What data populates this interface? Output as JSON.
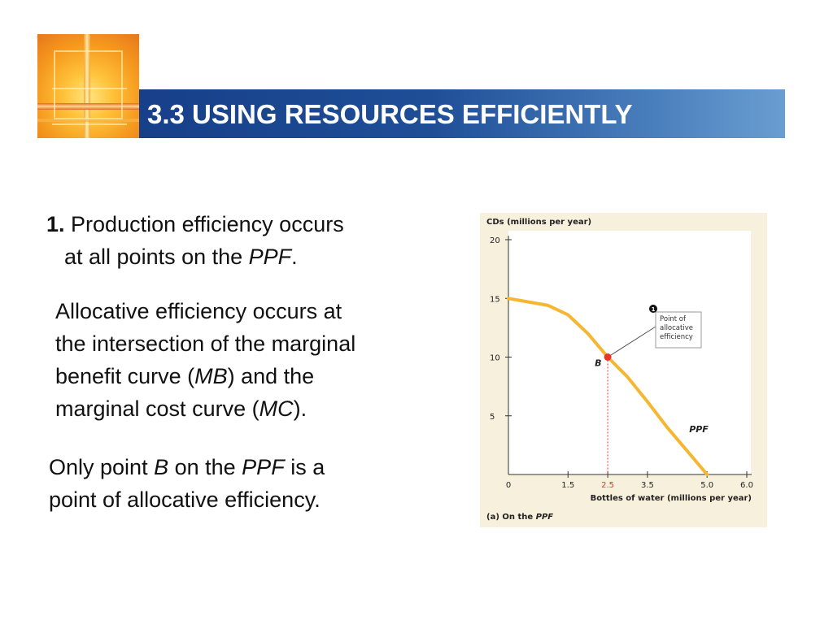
{
  "slide": {
    "title": "3.3 USING RESOURCES EFFICIENTLY",
    "point1": {
      "number": "1.",
      "line1": " Production efficiency occurs",
      "line2_pre": "at all points on the ",
      "line2_italic": "PPF",
      "line2_post": "."
    },
    "para2": {
      "l1": "Allocative efficiency occurs at",
      "l2": "the intersection of the marginal",
      "l3_pre": "benefit curve (",
      "l3_italic": "MB",
      "l3_post": ") and the",
      "l4_pre": "marginal cost curve (",
      "l4_italic": "MC",
      "l4_post": ")."
    },
    "para3": {
      "l1_pre": "Only point ",
      "l1_italic_b": "B",
      "l1_mid": " on the ",
      "l1_italic_ppf": "PPF",
      "l1_post": " is a",
      "l2": "point of allocative efficiency."
    }
  },
  "colors": {
    "banner_start": "#173f8a",
    "banner_end": "#6a9ed1",
    "curve": "#f5b731",
    "point": "#e8342a",
    "panel_bg": "#f7f0dc"
  },
  "chart_data": {
    "type": "line",
    "ylabel": "CDs (millions per year)",
    "xlabel": "Bottles of water (millions per year)",
    "caption_pre": "(a) On the ",
    "caption_italic": "PPF",
    "curve_label": "PPF",
    "y_ticks": [
      "20",
      "15",
      "10",
      "5"
    ],
    "y_tick_values": [
      20,
      15,
      10,
      5
    ],
    "x_ticks": [
      "0",
      "1.5",
      "2.5",
      "3.5",
      "5.0",
      "6.0"
    ],
    "x_tick_values": [
      0,
      1.5,
      2.5,
      3.5,
      5.0,
      6.0
    ],
    "highlight_x_tick": "2.5",
    "xlim": [
      0,
      6.0
    ],
    "ylim": [
      0,
      20
    ],
    "series": [
      {
        "x": [
          0,
          1.0,
          1.5,
          2.0,
          2.5,
          3.0,
          3.5,
          4.0,
          4.5,
          5.0
        ],
        "y": [
          15,
          14.4,
          13.6,
          12.0,
          10.0,
          8.3,
          6.2,
          4.0,
          2.0,
          0
        ]
      }
    ],
    "point": {
      "label": "B",
      "x": 2.5,
      "y": 10
    },
    "callout": {
      "number": "1",
      "lines": [
        "Point of",
        "allocative",
        "efficiency"
      ]
    }
  }
}
